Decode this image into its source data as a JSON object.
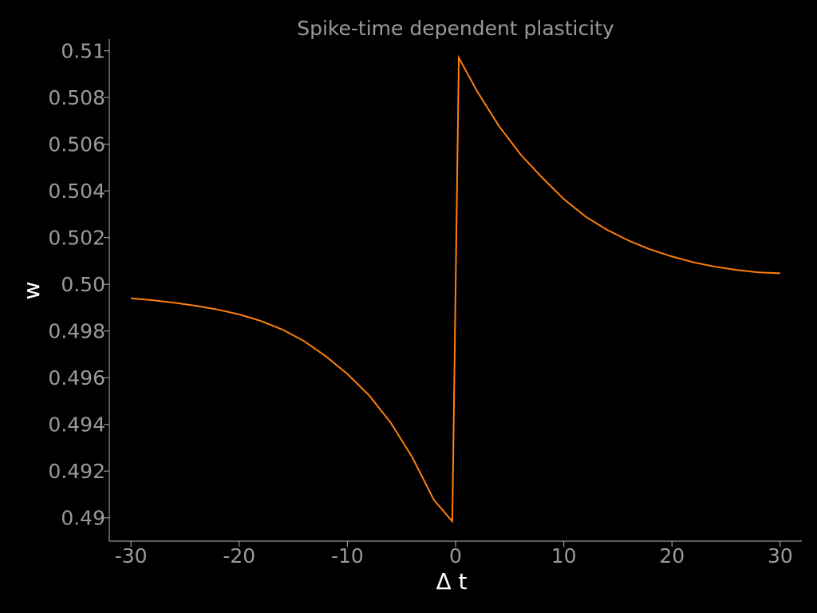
{
  "chart_data": {
    "type": "line",
    "title": "Spike-time dependent plasticity",
    "xlabel": "Δ t",
    "ylabel": "w",
    "xlim": [
      -32,
      32
    ],
    "ylim": [
      0.489,
      0.5105
    ],
    "xticks": [
      -30,
      -20,
      -10,
      0,
      10,
      20,
      30
    ],
    "xtick_labels": [
      "-30",
      "-20",
      "-10",
      "0",
      "10",
      "20",
      "30"
    ],
    "yticks": [
      0.49,
      0.492,
      0.494,
      0.496,
      0.498,
      0.5,
      0.502,
      0.504,
      0.506,
      0.508,
      0.51
    ],
    "ytick_labels": [
      "0.49",
      "0.492",
      "0.494",
      "0.496",
      "0.498",
      "0.50",
      "0.502",
      "0.504",
      "0.506",
      "0.508",
      "0.51"
    ],
    "grid": false,
    "colors": {
      "background": "#000000",
      "axis": "#9a9a9a",
      "line": "#ff7f0e"
    },
    "series": [
      {
        "x": [
          -30,
          -28,
          -26,
          -24,
          -22,
          -20,
          -18,
          -16,
          -14,
          -12,
          -10,
          -8,
          -6,
          -4,
          -2,
          -0.3,
          0.3,
          2,
          4,
          6,
          8,
          10,
          12,
          14,
          16,
          18,
          20,
          22,
          24,
          26,
          28,
          30
        ],
        "y": [
          0.4994,
          0.49932,
          0.49921,
          0.49908,
          0.49892,
          0.49871,
          0.49843,
          0.49806,
          0.49757,
          0.49692,
          0.49616,
          0.49525,
          0.49408,
          0.49259,
          0.49076,
          0.48985,
          0.5097,
          0.50826,
          0.50678,
          0.50556,
          0.50457,
          0.50365,
          0.5029,
          0.50233,
          0.50187,
          0.50149,
          0.50119,
          0.50094,
          0.50075,
          0.50061,
          0.50051,
          0.50047
        ]
      }
    ]
  }
}
